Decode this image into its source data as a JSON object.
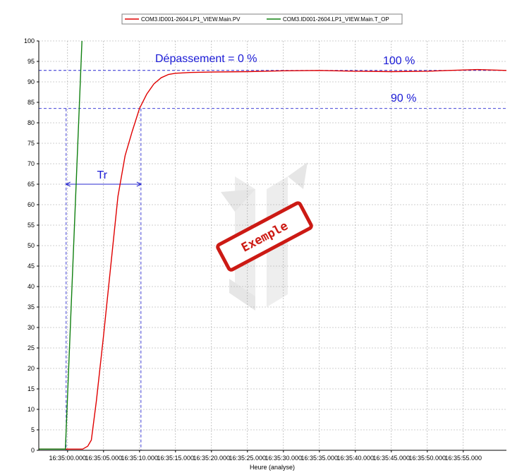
{
  "chart_data": {
    "type": "line",
    "title": "",
    "xlabel": "Heure (analyse)",
    "ylabel": "",
    "ylim": [
      0,
      100
    ],
    "y_ticks": [
      0,
      5,
      10,
      15,
      20,
      25,
      30,
      35,
      40,
      45,
      50,
      55,
      60,
      65,
      70,
      75,
      80,
      85,
      90,
      95,
      100
    ],
    "x_range_seconds": [
      -4,
      61
    ],
    "x_ticks": [
      {
        "t": 0,
        "label": "16:35:00.000"
      },
      {
        "t": 5,
        "label": "16:35:05.000"
      },
      {
        "t": 10,
        "label": "16:35:10.000"
      },
      {
        "t": 15,
        "label": "16:35:15.000"
      },
      {
        "t": 20,
        "label": "16:35:20.000"
      },
      {
        "t": 25,
        "label": "16:35:25.000"
      },
      {
        "t": 30,
        "label": "16:35:30.000"
      },
      {
        "t": 35,
        "label": "16:35:35.000"
      },
      {
        "t": 40,
        "label": "16:35:40.000"
      },
      {
        "t": 45,
        "label": "16:35:45.000"
      },
      {
        "t": 50,
        "label": "16:35:50.000"
      },
      {
        "t": 55,
        "label": "16:35:55.000"
      }
    ],
    "grid": true,
    "legend_position": "top-center",
    "series": [
      {
        "name": "COM3.ID001-2604.LP1_VIEW.Main.PV",
        "color": "#e00000",
        "points": [
          [
            -4,
            0.3
          ],
          [
            1.5,
            0.3
          ],
          [
            2.1,
            0.3
          ],
          [
            2.8,
            1
          ],
          [
            3.3,
            2.5
          ],
          [
            4,
            12
          ],
          [
            5,
            28
          ],
          [
            6,
            45
          ],
          [
            7,
            62
          ],
          [
            8,
            72
          ],
          [
            9,
            78
          ],
          [
            10,
            83.5
          ],
          [
            11,
            87
          ],
          [
            12,
            89.5
          ],
          [
            13,
            91
          ],
          [
            14,
            91.8
          ],
          [
            15,
            92.1
          ],
          [
            17,
            92.3
          ],
          [
            20,
            92.4
          ],
          [
            25,
            92.5
          ],
          [
            30,
            92.7
          ],
          [
            35,
            92.8
          ],
          [
            40,
            92.6
          ],
          [
            45,
            92.5
          ],
          [
            50,
            92.6
          ],
          [
            53,
            92.8
          ],
          [
            57,
            93
          ],
          [
            59,
            92.9
          ],
          [
            61,
            92.8
          ]
        ]
      },
      {
        "name": "COM3.ID001-2604.LP1_VIEW.Main.T_OP",
        "color": "#108010",
        "points": [
          [
            -4,
            0.3
          ],
          [
            -0.3,
            0.3
          ],
          [
            2,
            100
          ]
        ]
      }
    ],
    "annotations": {
      "overshoot": "Dépassement = 0 %",
      "level_100": "100 %",
      "level_90": "90 %",
      "rise_time": "Tr",
      "level_100_value": 92.8,
      "level_90_value": 83.5,
      "tr_start_seconds": -0.2,
      "tr_end_seconds": 10.2,
      "tr_arrow_level": 65
    },
    "watermark": "Exemple"
  }
}
